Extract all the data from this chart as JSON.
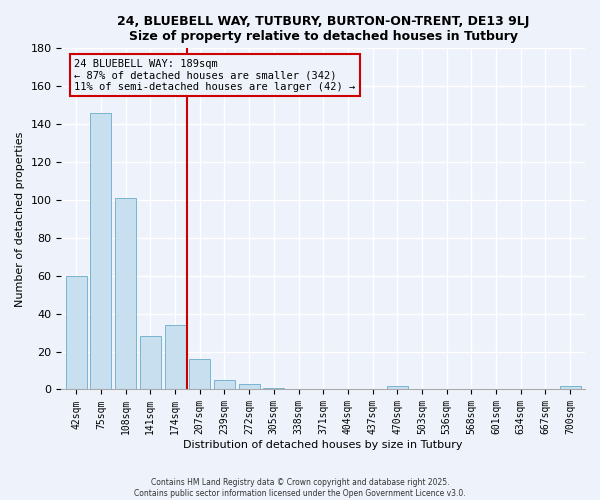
{
  "title": "24, BLUEBELL WAY, TUTBURY, BURTON-ON-TRENT, DE13 9LJ",
  "subtitle": "Size of property relative to detached houses in Tutbury",
  "xlabel": "Distribution of detached houses by size in Tutbury",
  "ylabel": "Number of detached properties",
  "bar_color": "#c8dff0",
  "bar_edge_color": "#7ab4d0",
  "categories": [
    "42sqm",
    "75sqm",
    "108sqm",
    "141sqm",
    "174sqm",
    "207sqm",
    "239sqm",
    "272sqm",
    "305sqm",
    "338sqm",
    "371sqm",
    "404sqm",
    "437sqm",
    "470sqm",
    "503sqm",
    "536sqm",
    "568sqm",
    "601sqm",
    "634sqm",
    "667sqm",
    "700sqm"
  ],
  "values": [
    60,
    146,
    101,
    28,
    34,
    16,
    5,
    3,
    1,
    0,
    0,
    0,
    0,
    2,
    0,
    0,
    0,
    0,
    0,
    0,
    2
  ],
  "vline_x_idx": 4.5,
  "vline_color": "#cc0000",
  "annotation_line1": "24 BLUEBELL WAY: 189sqm",
  "annotation_line2": "← 87% of detached houses are smaller (342)",
  "annotation_line3": "11% of semi-detached houses are larger (42) →",
  "ylim": [
    0,
    180
  ],
  "yticks": [
    0,
    20,
    40,
    60,
    80,
    100,
    120,
    140,
    160,
    180
  ],
  "footer1": "Contains HM Land Registry data © Crown copyright and database right 2025.",
  "footer2": "Contains public sector information licensed under the Open Government Licence v3.0.",
  "bg_color": "#eef2fa",
  "plot_bg_color": "#eef2fa",
  "grid_color": "#ffffff"
}
